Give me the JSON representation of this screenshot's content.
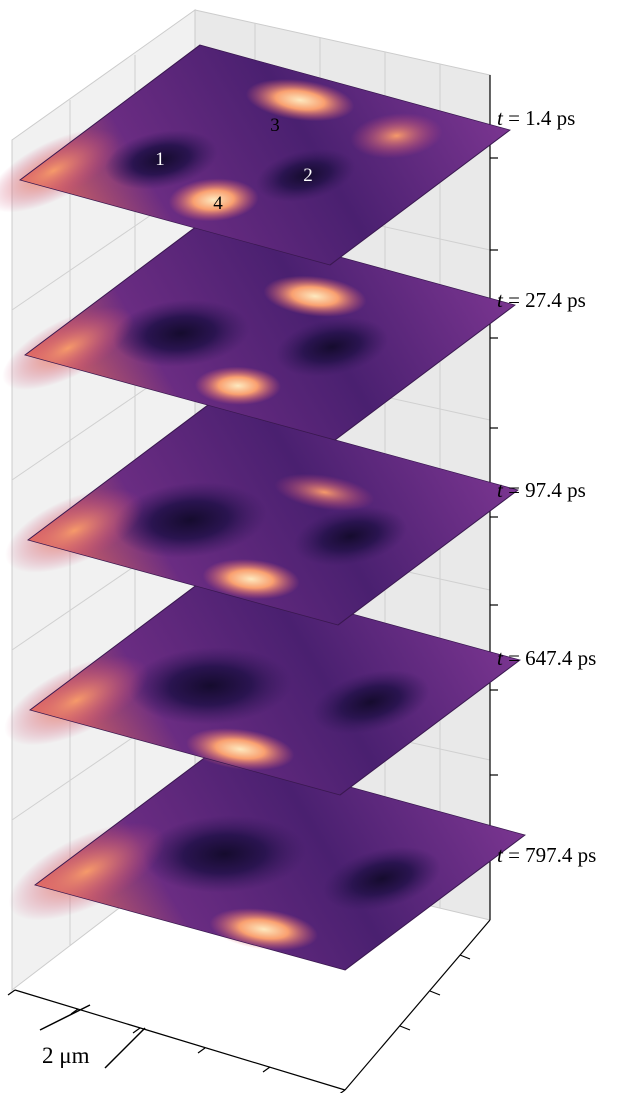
{
  "time_labels": [
    {
      "symbol": "t",
      "rest": "= 1.4 ps"
    },
    {
      "symbol": "t",
      "rest": "= 27.4 ps"
    },
    {
      "symbol": "t",
      "rest": "= 97.4 ps"
    },
    {
      "symbol": "t",
      "rest": "= 647.4 ps"
    },
    {
      "symbol": "t",
      "rest": "= 797.4 ps"
    }
  ],
  "peak_labels": [
    "1",
    "2",
    "3",
    "4"
  ],
  "scale_bar": "2 μm"
}
